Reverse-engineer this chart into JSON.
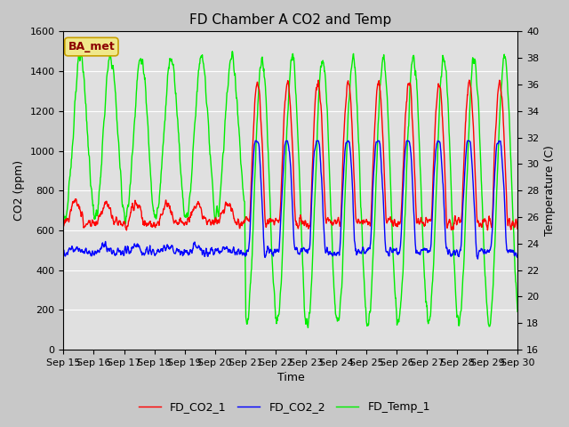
{
  "title": "FD Chamber A CO2 and Temp",
  "xlabel": "Time",
  "ylabel_left": "CO2 (ppm)",
  "ylabel_right": "Temperature (C)",
  "legend_label": "BA_met",
  "series": [
    "FD_CO2_1",
    "FD_CO2_2",
    "FD_Temp_1"
  ],
  "colors": [
    "red",
    "blue",
    "#00ee00"
  ],
  "ylim_left": [
    0,
    1600
  ],
  "ylim_right": [
    16,
    40
  ],
  "yticks_left": [
    0,
    200,
    400,
    600,
    800,
    1000,
    1200,
    1400,
    1600
  ],
  "yticks_right": [
    16,
    18,
    20,
    22,
    24,
    26,
    28,
    30,
    32,
    34,
    36,
    38,
    40
  ],
  "bg_color": "#c8c8c8",
  "plot_bg_color": "#e0e0e0",
  "title_fontsize": 11,
  "axis_fontsize": 9,
  "tick_fontsize": 8,
  "legend_fontsize": 9,
  "linewidth": 1.0,
  "figsize": [
    6.4,
    4.8
  ],
  "dpi": 100
}
